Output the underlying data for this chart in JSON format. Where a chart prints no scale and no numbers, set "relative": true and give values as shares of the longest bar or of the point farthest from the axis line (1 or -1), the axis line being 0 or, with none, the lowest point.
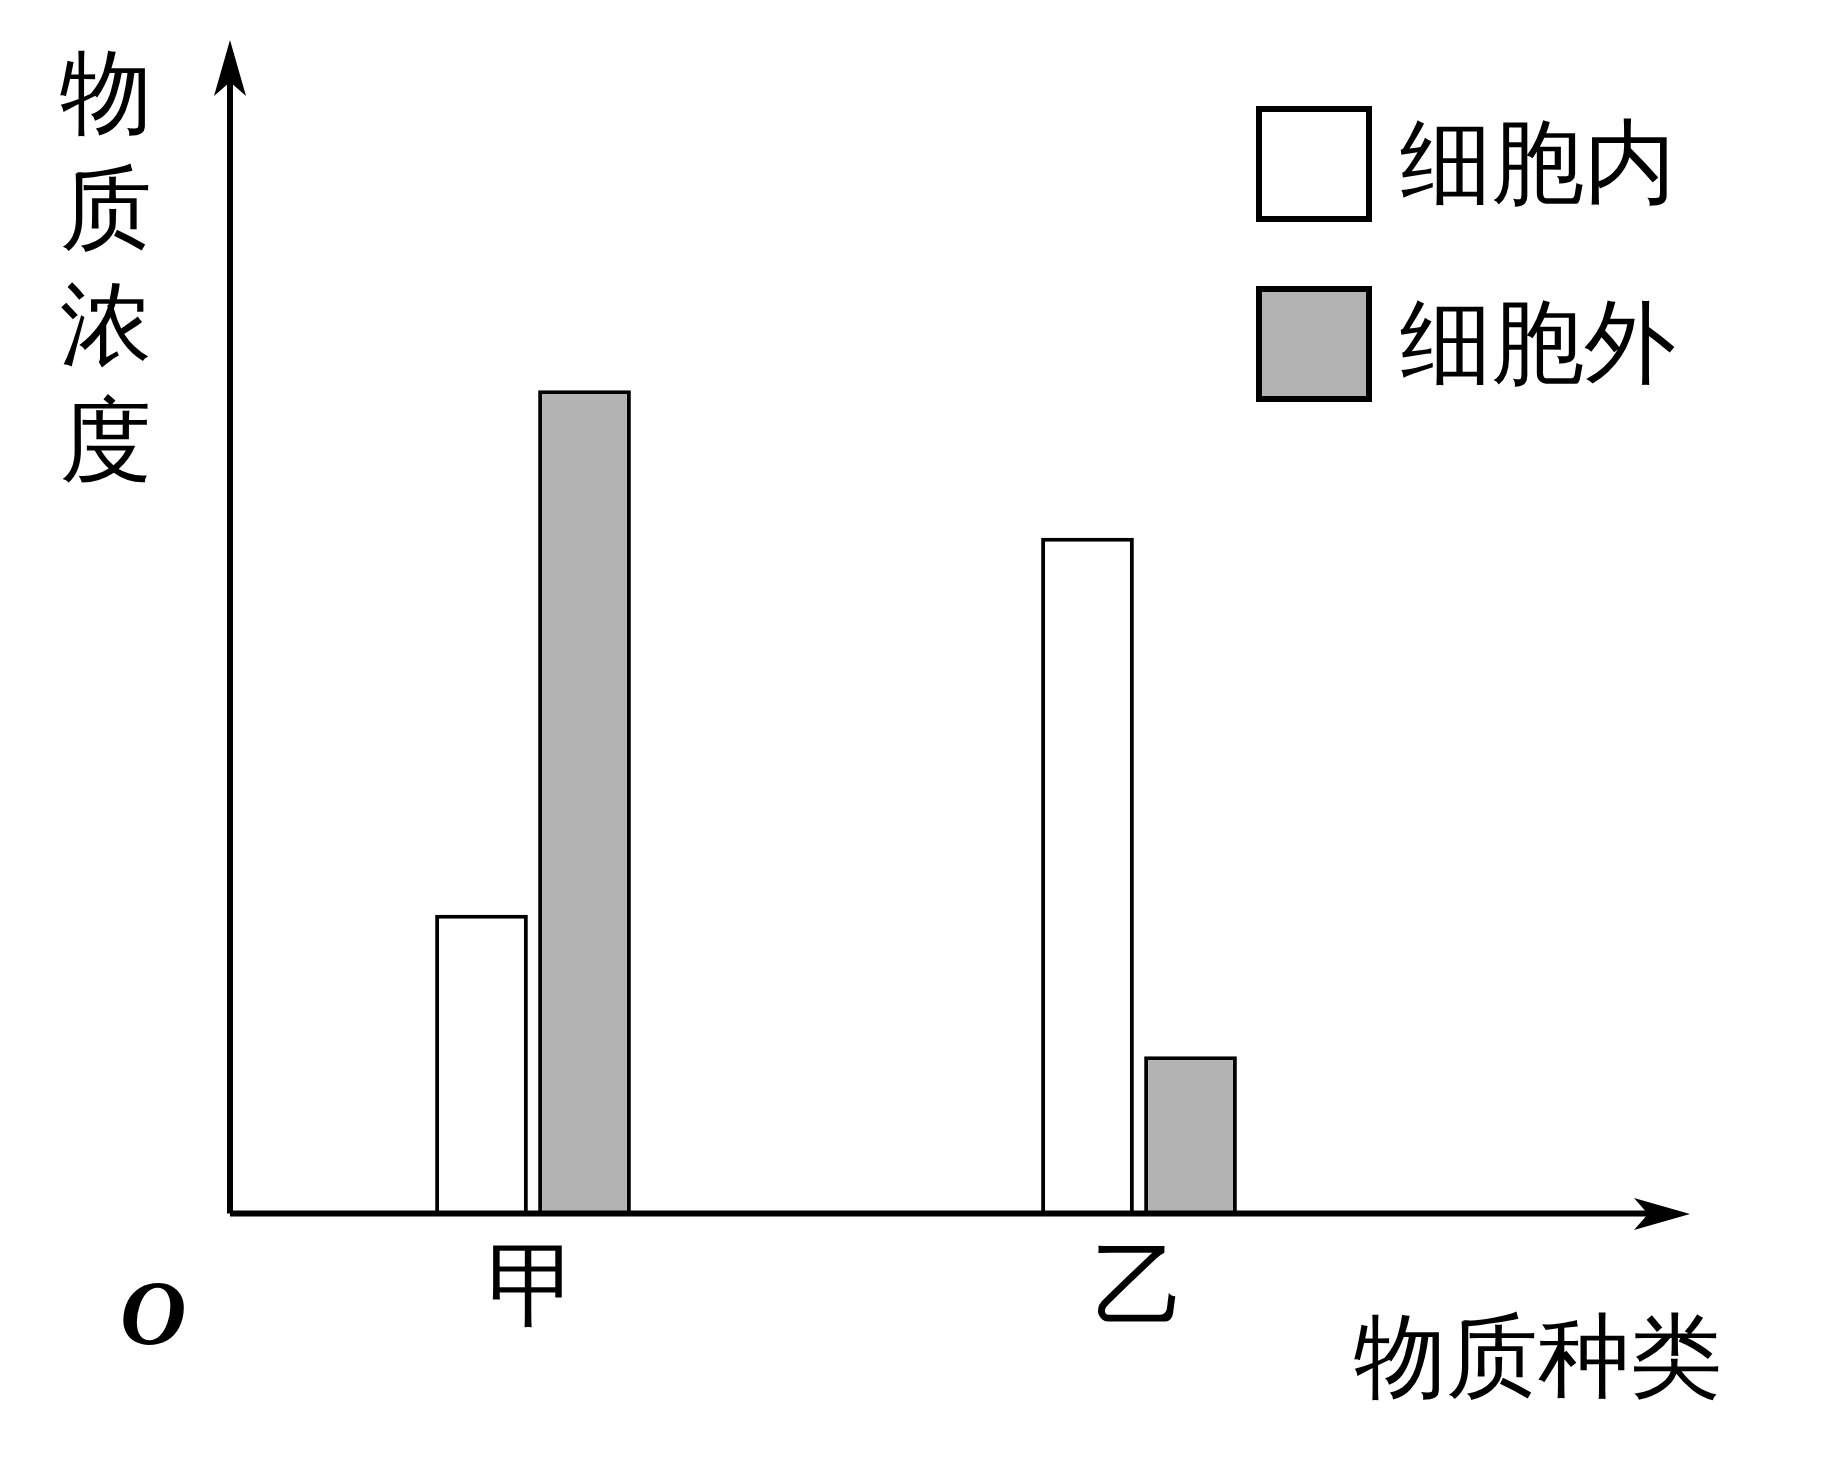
{
  "chart_data": {
    "type": "bar",
    "relative": true,
    "xlabel": "物质种类",
    "ylabel": "物质浓度",
    "annotations": [
      "O"
    ],
    "legend": "top right",
    "grid": false,
    "categories": [
      "甲",
      "乙"
    ],
    "series": [
      {
        "name": "细胞内",
        "color": "#ffffff",
        "values": [
          0.363,
          0.821
        ]
      },
      {
        "name": "细胞外",
        "color": "#b3b3b3",
        "values": [
          1,
          0.191
        ]
      }
    ]
  }
}
